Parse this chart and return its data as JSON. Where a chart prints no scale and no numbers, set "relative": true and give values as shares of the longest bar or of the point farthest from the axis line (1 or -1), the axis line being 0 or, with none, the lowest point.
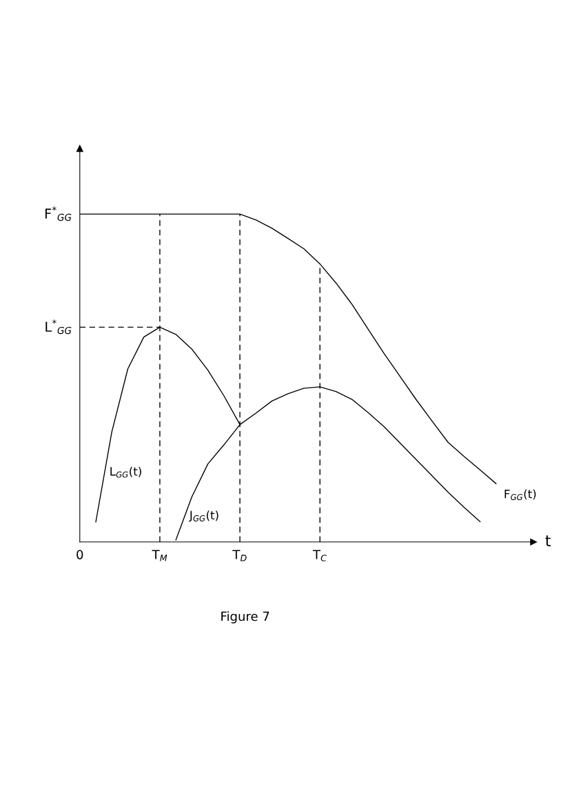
{
  "chart_data": {
    "type": "line",
    "relative": true,
    "xlabel": "t",
    "categories": [
      "0",
      null,
      null,
      null,
      null,
      "T$_{M}$",
      null,
      null,
      null,
      null,
      "T$_{D}$",
      null,
      null,
      null,
      null,
      "T$_{C}$",
      null,
      null,
      null,
      null,
      null,
      null,
      null,
      null,
      null,
      null,
      null
    ],
    "series": [
      {
        "name": "F$_{GG}$(t)",
        "color": "#000000",
        "values": [
          1.0,
          1.0,
          1.0,
          1.0,
          1.0,
          1.0,
          1.0,
          1.0,
          1.0,
          1.0,
          1.0,
          0.982,
          0.957,
          0.926,
          0.894,
          0.848,
          0.79,
          0.725,
          0.65,
          0.575,
          0.505,
          0.435,
          0.369,
          0.304,
          0.261,
          0.22,
          0.178
        ]
      },
      {
        "name": "L$_{GG}$(t)",
        "color": "#000000",
        "values": [
          null,
          0.061,
          0.336,
          0.528,
          0.625,
          0.655,
          0.633,
          0.588,
          0.524,
          0.446,
          0.358,
          null,
          null,
          null,
          null,
          null,
          null,
          null,
          null,
          null,
          null,
          null,
          null,
          null,
          null,
          null,
          null
        ]
      },
      {
        "name": "J$_{GG}$(t)",
        "color": "#000000",
        "values": [
          null,
          null,
          null,
          null,
          null,
          null,
          0.006,
          0.138,
          0.238,
          0.296,
          0.358,
          0.393,
          0.43,
          0.452,
          0.469,
          0.473,
          0.459,
          0.435,
          0.395,
          0.352,
          0.302,
          0.252,
          0.202,
          0.152,
          0.106,
          0.062,
          null
        ]
      }
    ],
    "ref_lines": [
      {
        "axis": "y",
        "value": 0.655,
        "label": "L$^{*}$$_{GG}$",
        "color": "#000000",
        "line_style": "dashed"
      },
      {
        "axis": "x",
        "value": "T$_{M}$",
        "color": "#000000",
        "line_style": "dashed"
      },
      {
        "axis": "x",
        "value": "T$_{D}$",
        "color": "#000000",
        "line_style": "dashed"
      },
      {
        "axis": "x",
        "value": "T$_{C}$",
        "color": "#000000",
        "line_style": "dashed"
      }
    ],
    "ylabel": "F$^{*}$$_{GG}$",
    "annotations": [
      "Figure 7"
    ],
    "legend": false,
    "line_style": "solid",
    "marker": "none"
  }
}
